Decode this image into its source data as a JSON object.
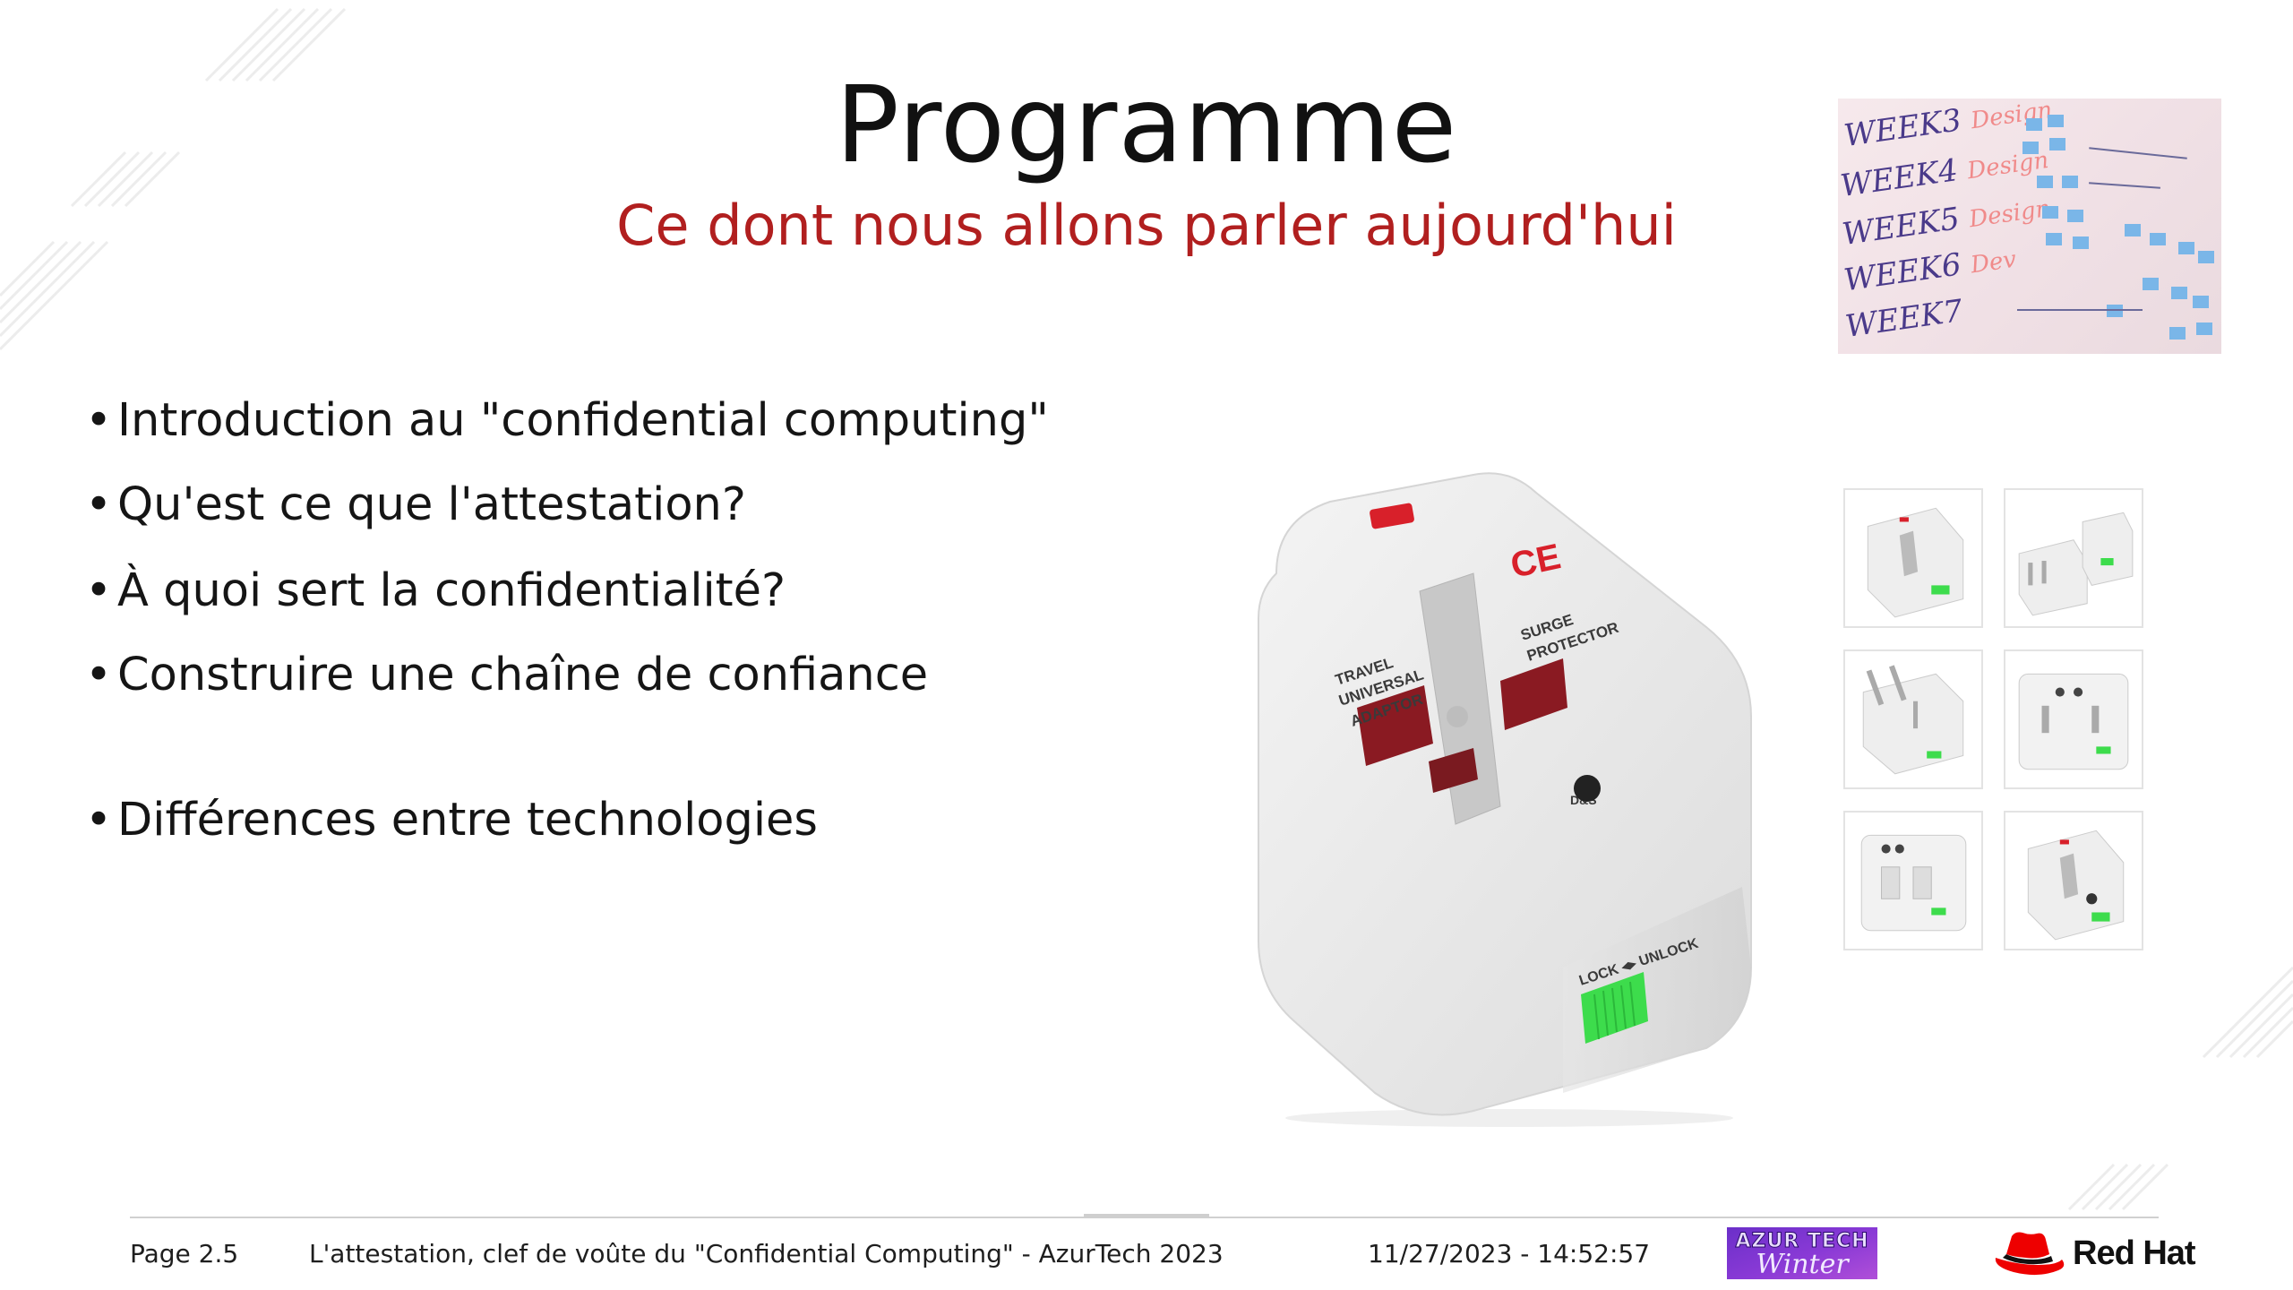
{
  "slide": {
    "title": "Programme",
    "subtitle": "Ce dont nous allons parler aujourd'hui",
    "bullets": [
      "Introduction au \"confidential computing\"",
      "Qu'est ce que l'attestation?",
      "À quoi sert la confidentialité?",
      "Construire une chaîne de confiance",
      "Différences entre technologies"
    ],
    "bullet_symbol": "•"
  },
  "whiteboard": {
    "weeks": [
      {
        "label": "WEEK3",
        "tag": "Design"
      },
      {
        "label": "WEEK4",
        "tag": "Design"
      },
      {
        "label": "WEEK5",
        "tag": "Design"
      },
      {
        "label": "WEEK6",
        "tag": "Dev"
      },
      {
        "label": "WEEK7",
        "tag": ""
      }
    ]
  },
  "product": {
    "marks": {
      "ce": "CE",
      "travel": "TRAVEL\nUNIVERSAL\nADAPTOR",
      "surge": "SURGE\nPROTECTOR",
      "brand": "D&S",
      "lock": "LOCK ◂▸ UNLOCK"
    },
    "accent_green": "#3ddc4c",
    "accent_red": "#d8202a"
  },
  "footer": {
    "page": "Page 2.5",
    "talk": "L'attestation, clef de voûte du \"Confidential Computing\" - AzurTech 2023",
    "datetime": "11/27/2023 - 14:52:57",
    "event_logo_line1": "AZUR TECH",
    "event_logo_line2": "Winter",
    "brand": "Red Hat"
  },
  "colors": {
    "subtitle": "#b11f1f",
    "redhat_red": "#ee0000",
    "azur_purple": "#7a35d0"
  }
}
